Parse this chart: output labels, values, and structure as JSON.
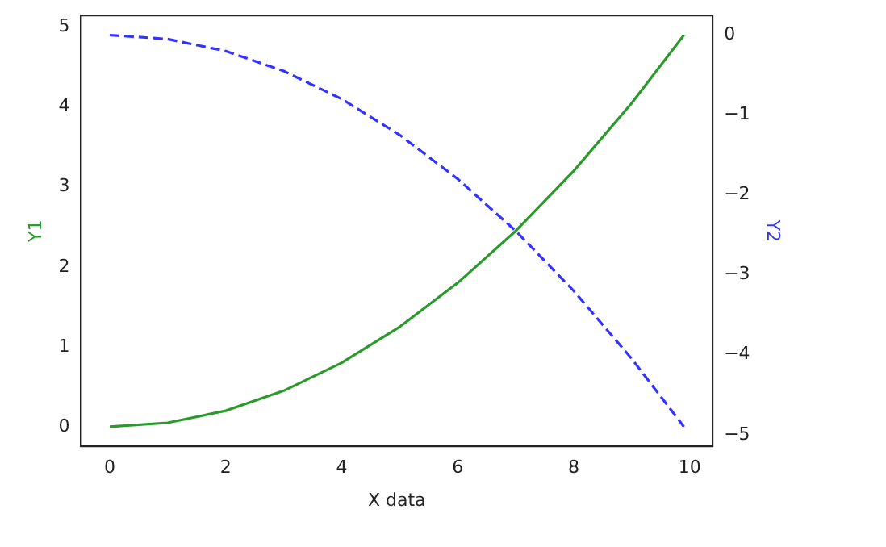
{
  "chart_data": {
    "type": "line",
    "xlabel": "X data",
    "ylabel": "Y1",
    "y2label": "Y2",
    "x": [
      0,
      1,
      2,
      3,
      4,
      5,
      6,
      7,
      8,
      9,
      9.9
    ],
    "series": [
      {
        "color": "#2a9a2a",
        "line_style": "solid",
        "values": [
          0,
          0.05,
          0.2,
          0.45,
          0.8,
          1.25,
          1.8,
          2.45,
          3.2,
          4.05,
          4.9
        ]
      },
      {
        "color": "#3333ff",
        "line_style": "dashed",
        "axis": "y2",
        "values": [
          0,
          -0.05,
          -0.2,
          -0.45,
          -0.8,
          -1.25,
          -1.8,
          -2.45,
          -3.2,
          -4.05,
          -4.9
        ]
      }
    ],
    "xlim": [
      -0.495,
      10.395
    ],
    "xticks": [
      0,
      2,
      4,
      6,
      8,
      10
    ],
    "ylim": [
      -0.245,
      5.145
    ],
    "yticks": [
      0,
      1,
      2,
      3,
      4,
      5
    ],
    "y2lim": [
      -5.145,
      0.245
    ],
    "y2ticks": [
      {
        "value": -5,
        "label": "−5"
      },
      {
        "value": -4,
        "label": "−4"
      },
      {
        "value": -3,
        "label": "−3"
      },
      {
        "value": -2,
        "label": "−2"
      },
      {
        "value": -1,
        "label": "−1"
      },
      0
    ],
    "legend": false,
    "grid": false
  }
}
